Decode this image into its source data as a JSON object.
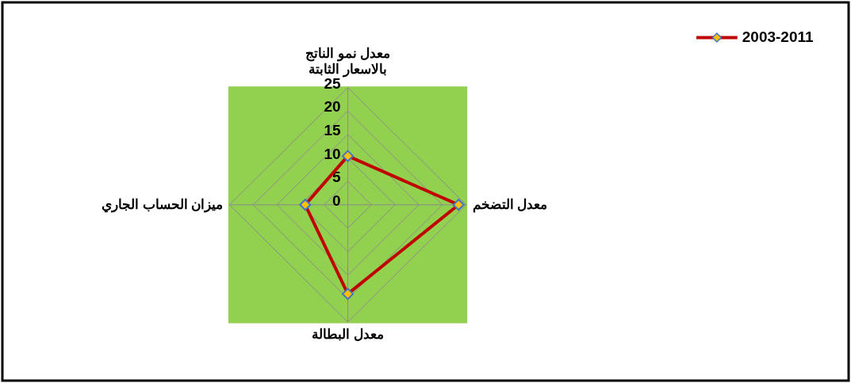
{
  "chart_data": {
    "type": "radar",
    "categories": [
      "معدل نمو الناتج\nبالاسعار الثابتة",
      "معدل التضخم",
      "معدل البطالة",
      "ميزان الحساب الجاري"
    ],
    "series": [
      {
        "name": "2003-2011",
        "color": "#c00000",
        "values": [
          10.4,
          23.4,
          19.0,
          9.0
        ]
      }
    ],
    "ylim": [
      0,
      25
    ],
    "yticks": [
      0,
      5,
      10,
      15,
      20,
      25
    ],
    "grid": true,
    "marker": "diamond",
    "legend": "top right"
  }
}
